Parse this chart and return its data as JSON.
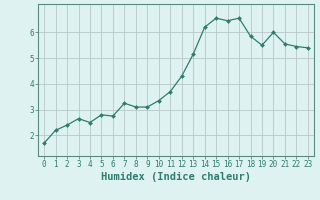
{
  "x": [
    0,
    1,
    2,
    3,
    4,
    5,
    6,
    7,
    8,
    9,
    10,
    11,
    12,
    13,
    14,
    15,
    16,
    17,
    18,
    19,
    20,
    21,
    22,
    23
  ],
  "y": [
    1.7,
    2.2,
    2.4,
    2.65,
    2.5,
    2.8,
    2.75,
    3.25,
    3.1,
    3.1,
    3.35,
    3.7,
    4.3,
    5.15,
    6.2,
    6.55,
    6.45,
    6.55,
    5.85,
    5.5,
    6.0,
    5.55,
    5.45,
    5.4
  ],
  "xlabel": "Humidex (Indice chaleur)",
  "line_color": "#2e7d6e",
  "marker": "D",
  "marker_size": 2.0,
  "bg_color": "#dff2f2",
  "grid_color": "#b8c8c8",
  "ylim": [
    1.2,
    7.1
  ],
  "xlim": [
    -0.5,
    23.5
  ],
  "yticks": [
    2,
    3,
    4,
    5,
    6
  ],
  "xticks": [
    0,
    1,
    2,
    3,
    4,
    5,
    6,
    7,
    8,
    9,
    10,
    11,
    12,
    13,
    14,
    15,
    16,
    17,
    18,
    19,
    20,
    21,
    22,
    23
  ],
  "tick_fontsize": 5.5,
  "xlabel_fontsize": 7.5,
  "axis_color": "#2e7d6e",
  "spine_color": "#5a8a80"
}
